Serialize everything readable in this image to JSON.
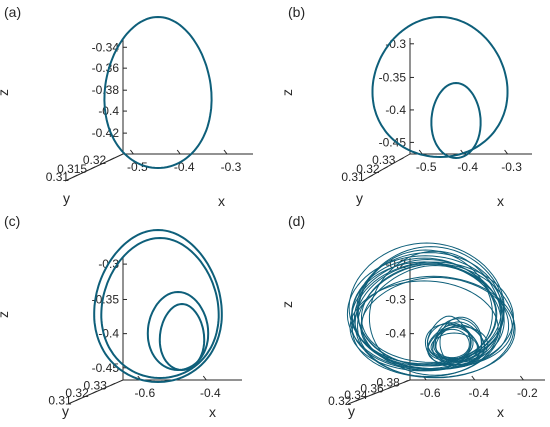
{
  "chart_data": [
    {
      "panel": "(a)",
      "type": "line",
      "subtype": "3d-phase-portrait",
      "attractor": "period-1",
      "xlabel": "x",
      "ylabel": "y",
      "zlabel": "z",
      "xticks": [
        "-0.5",
        "-0.4",
        "-0.3"
      ],
      "yticks": [
        "0.32",
        "0.315",
        "0.31"
      ],
      "zticks": [
        "-0.34",
        "-0.36",
        "-0.38",
        "-0.4",
        "-0.42"
      ],
      "color": "#0e5f7a"
    },
    {
      "panel": "(b)",
      "type": "line",
      "subtype": "3d-phase-portrait",
      "attractor": "period-2",
      "xlabel": "x",
      "ylabel": "y",
      "zlabel": "z",
      "xticks": [
        "-0.5",
        "-0.4",
        "-0.3"
      ],
      "yticks": [
        "0.33",
        "0.32",
        "0.31"
      ],
      "zticks": [
        "-0.3",
        "-0.35",
        "-0.4",
        "-0.45"
      ],
      "color": "#0e5f7a"
    },
    {
      "panel": "(c)",
      "type": "line",
      "subtype": "3d-phase-portrait",
      "attractor": "period-4",
      "xlabel": "x",
      "ylabel": "y",
      "zlabel": "z",
      "xticks": [
        "-0.6",
        "-0.4"
      ],
      "yticks": [
        "0.33",
        "0.32",
        "0.31"
      ],
      "zticks": [
        "-0.3",
        "-0.35",
        "-0.4",
        "-0.45"
      ],
      "color": "#0e5f7a"
    },
    {
      "panel": "(d)",
      "type": "line",
      "subtype": "3d-phase-portrait",
      "attractor": "chaotic",
      "xlabel": "x",
      "ylabel": "y",
      "zlabel": "z",
      "xticks": [
        "-0.6",
        "-0.4",
        "-0.2"
      ],
      "yticks": [
        "0.38",
        "0.36",
        "0.34",
        "0.32"
      ],
      "zticks": [
        "-0.2",
        "-0.3",
        "-0.4"
      ],
      "color": "#0e5f7a"
    }
  ]
}
